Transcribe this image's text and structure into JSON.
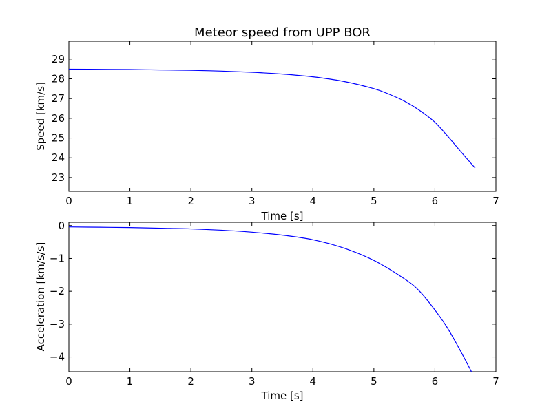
{
  "chart_data": [
    {
      "type": "line",
      "title": "Meteor speed from  UPP BOR",
      "xlabel": "Time [s]",
      "ylabel": "Speed [km/s]",
      "xlim": [
        0,
        7
      ],
      "ylim": [
        22.3,
        29.9
      ],
      "xticks": [
        0,
        1,
        2,
        3,
        4,
        5,
        6,
        7
      ],
      "yticks": [
        23,
        24,
        25,
        26,
        27,
        28,
        29
      ],
      "xtick_labels": [
        "0",
        "1",
        "2",
        "3",
        "4",
        "5",
        "6",
        "7"
      ],
      "ytick_labels": [
        "23",
        "24",
        "25",
        "26",
        "27",
        "28",
        "29"
      ],
      "grid": false,
      "series": [
        {
          "color": "#0000ff",
          "x": [
            0,
            0.5,
            1,
            1.5,
            2,
            2.5,
            3,
            3.5,
            4,
            4.5,
            5,
            5.25,
            5.5,
            5.75,
            6,
            6.2,
            6.4,
            6.66
          ],
          "y": [
            28.49,
            28.48,
            28.47,
            28.45,
            28.43,
            28.39,
            28.33,
            28.24,
            28.1,
            27.87,
            27.5,
            27.22,
            26.87,
            26.4,
            25.8,
            25.13,
            24.4,
            23.48
          ]
        }
      ]
    },
    {
      "type": "line",
      "title": "",
      "xlabel": "Time [s]",
      "ylabel": "Acceleration [km/s/s]",
      "xlim": [
        0,
        7
      ],
      "ylim": [
        -4.45,
        0.1
      ],
      "xticks": [
        0,
        1,
        2,
        3,
        4,
        5,
        6,
        7
      ],
      "yticks": [
        -4,
        -3,
        -2,
        -1,
        0
      ],
      "xtick_labels": [
        "0",
        "1",
        "2",
        "3",
        "4",
        "5",
        "6",
        "7"
      ],
      "ytick_labels": [
        "−4",
        "−3",
        "−2",
        "−1",
        "0"
      ],
      "grid": false,
      "series": [
        {
          "color": "#0000ff",
          "x": [
            0,
            0.5,
            1,
            1.5,
            2,
            2.5,
            3,
            3.5,
            4,
            4.5,
            5,
            5.5,
            5.75,
            6,
            6.2,
            6.4,
            6.6
          ],
          "y": [
            -0.04,
            -0.05,
            -0.06,
            -0.08,
            -0.1,
            -0.14,
            -0.2,
            -0.29,
            -0.43,
            -0.68,
            -1.06,
            -1.62,
            -2.0,
            -2.57,
            -3.1,
            -3.75,
            -4.45
          ]
        }
      ]
    }
  ]
}
